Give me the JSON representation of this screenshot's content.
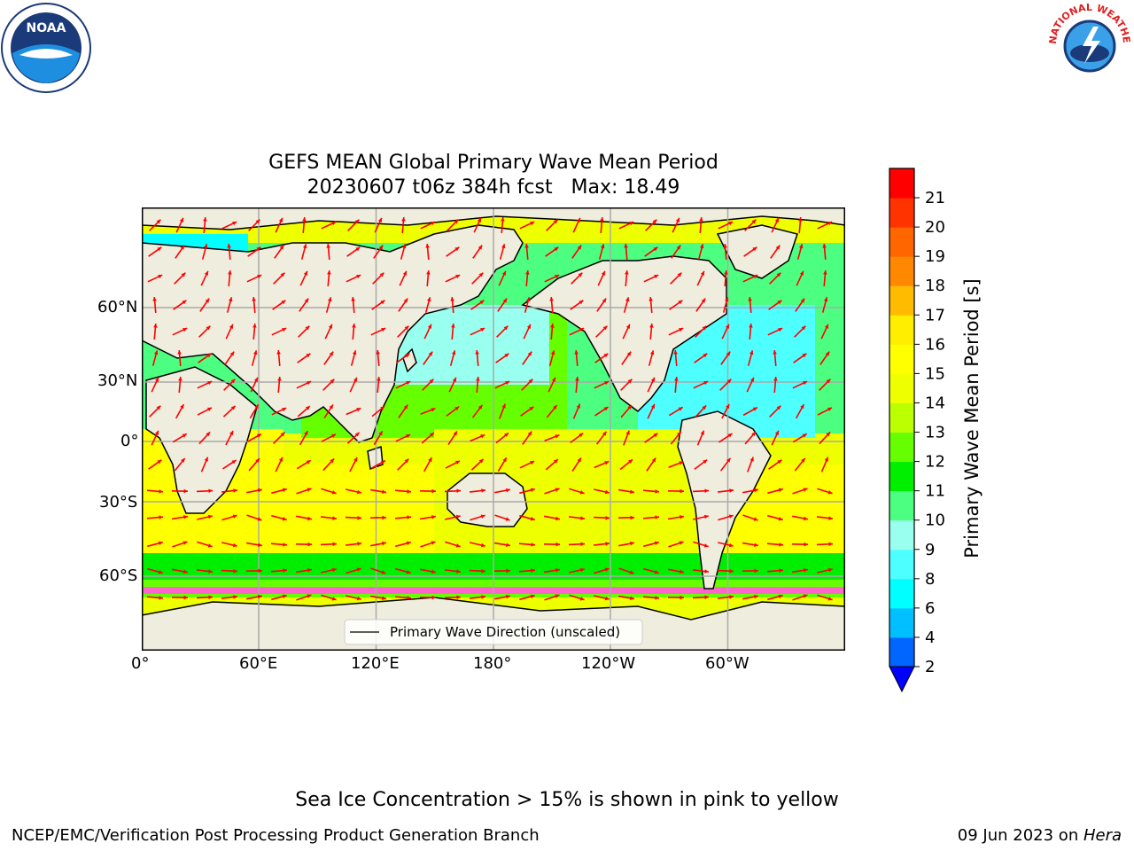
{
  "header": {
    "left_logo_icon": "noaa-logo-icon",
    "right_logo_icon": "nws-logo-icon",
    "left_logo_text": "NOAA",
    "right_logo_text": "NATIONAL WEATHER SERVICE"
  },
  "title_line1": "GEFS MEAN Global Primary Wave Mean Period",
  "title_line2": "20230607 t06z 384h fcst   Max: 18.49",
  "map": {
    "lat_ticks": [
      "60°N",
      "30°N",
      "0°",
      "30°S",
      "60°S"
    ],
    "lon_ticks": [
      "0°",
      "60°E",
      "120°E",
      "180°",
      "120°W",
      "60°W"
    ],
    "legend_text": "Primary Wave Direction (unscaled)",
    "arrow_color": "#ff0000",
    "land_color": "#efedde"
  },
  "colorbar": {
    "label": "Primary Wave Mean Period [s]",
    "ticks": [
      "2",
      "4",
      "6",
      "8",
      "9",
      "10",
      "11",
      "12",
      "13",
      "14",
      "15",
      "16",
      "17",
      "18",
      "19",
      "20",
      "21"
    ],
    "colors": [
      "#0066ff",
      "#00bfff",
      "#00ffff",
      "#4dffff",
      "#99ffee",
      "#4dff80",
      "#00ee00",
      "#66ff00",
      "#bbff00",
      "#eeff00",
      "#ffff00",
      "#ffee00",
      "#ffbb00",
      "#ff8800",
      "#ff6600",
      "#ff3300",
      "#ff0000"
    ],
    "extend_color": "#0000ff"
  },
  "footer": {
    "ice_note": "Sea Ice Concentration > 15% is shown in pink to yellow",
    "credit": "NCEP/EMC/Verification Post Processing Product Generation Branch",
    "date_prefix": "09 Jun 2023 on ",
    "host": "Hera"
  }
}
